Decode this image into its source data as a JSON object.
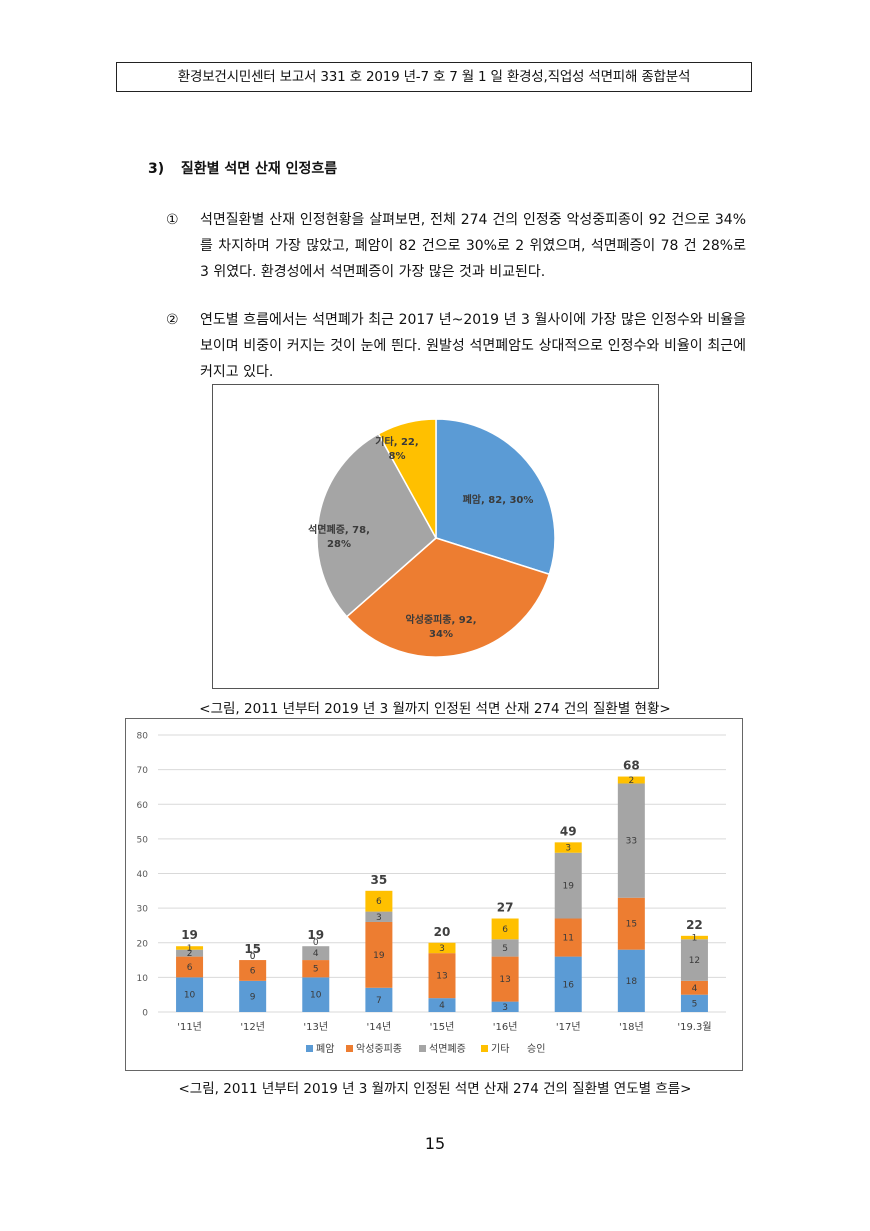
{
  "header": {
    "text": "환경보건시민센터 보고서 331 호 2019 년-7 호 7 월 1 일 환경성,직업성 석면피해 종합분석"
  },
  "section": {
    "number": "3)",
    "title": "질환별 석면 산재 인정흐름"
  },
  "paragraphs": [
    {
      "marker": "①",
      "text": "석면질환별 산재 인정현황을 살펴보면, 전체 274 건의 인정중 악성중피종이 92 건으로 34%를 차지하며 가장 많았고, 폐암이 82 건으로 30%로 2 위였으며, 석면폐증이 78 건 28%로 3 위였다. 환경성에서 석면폐증이 가장 많은 것과 비교된다."
    },
    {
      "marker": "②",
      "text": "연도별 흐름에서는 석면폐가 최근 2017 년~2019 년 3 월사이에 가장 많은 인정수와 비율을 보이며 비중이 커지는 것이 눈에 띈다. 원발성 석면폐암도 상대적으로 인정수와 비율이 최근에 커지고 있다."
    }
  ],
  "chart_data": [
    {
      "type": "pie",
      "slices": [
        {
          "label": "폐암",
          "value": 82,
          "percent": "30%",
          "color": "#5B9BD5",
          "text_line1": "폐암, 82, 30%",
          "text_line2": ""
        },
        {
          "label": "악성중피종",
          "value": 92,
          "percent": "34%",
          "color": "#ED7D31",
          "text_line1": "악성중피종, 92,",
          "text_line2": "34%"
        },
        {
          "label": "석면폐증",
          "value": 78,
          "percent": "28%",
          "color": "#A5A5A5",
          "text_line1": "석면폐증, 78,",
          "text_line2": "28%"
        },
        {
          "label": "기타",
          "value": 22,
          "percent": "8%",
          "color": "#FFC000",
          "text_line1": "기타, 22,",
          "text_line2": "8%"
        }
      ]
    },
    {
      "type": "bar",
      "stacked": true,
      "categories": [
        "'11년",
        "'12년",
        "'13년",
        "'14년",
        "'15년",
        "'16년",
        "'17년",
        "'18년",
        "'19.3월"
      ],
      "series": [
        {
          "name": "폐암",
          "color": "#5B9BD5",
          "values": [
            10,
            9,
            10,
            7,
            4,
            3,
            16,
            18,
            5
          ]
        },
        {
          "name": "악성중피종",
          "color": "#ED7D31",
          "values": [
            6,
            6,
            5,
            19,
            13,
            13,
            11,
            15,
            4
          ]
        },
        {
          "name": "석면폐증",
          "color": "#A5A5A5",
          "values": [
            2,
            0,
            4,
            3,
            0,
            5,
            19,
            33,
            12
          ]
        },
        {
          "name": "기타",
          "color": "#FFC000",
          "values": [
            1,
            0,
            0,
            6,
            3,
            6,
            3,
            2,
            1
          ]
        }
      ],
      "totals": [
        19,
        15,
        19,
        35,
        20,
        27,
        49,
        68,
        22
      ],
      "legend_extra": "승인",
      "ylim": [
        0,
        80
      ],
      "yticks": [
        0,
        10,
        20,
        30,
        40,
        50,
        60,
        70,
        80
      ],
      "grid": true,
      "legend_position": "bottom"
    }
  ],
  "captions": {
    "pie": "<그림, 2011 년부터 2019 년 3 월까지 인정된 석면 산재 274 건의 질환별 현황>",
    "bar": "<그림, 2011 년부터 2019 년 3 월까지 인정된 석면 산재 274 건의 질환별 연도별 흐름>"
  },
  "page_number": "15"
}
